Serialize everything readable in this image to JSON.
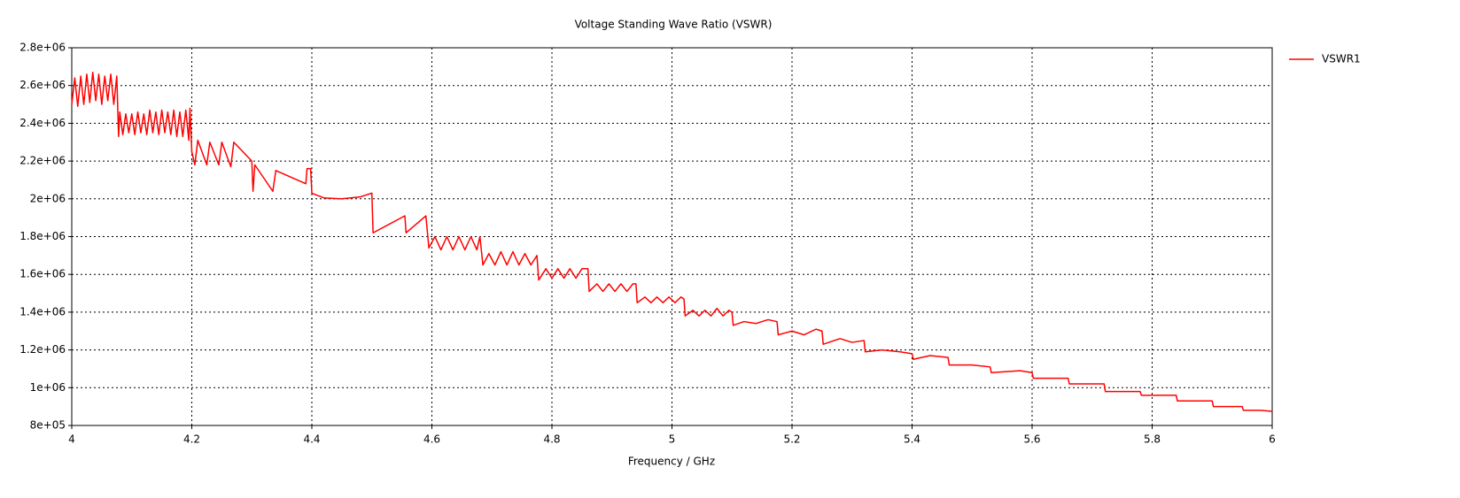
{
  "chart_data": {
    "type": "line",
    "title": "Voltage Standing Wave Ratio (VSWR)",
    "x_label": "Frequency / GHz",
    "x": [
      4,
      4.005,
      4.01,
      4.015,
      4.02,
      4.025,
      4.03,
      4.035,
      4.04,
      4.045,
      4.05,
      4.055,
      4.06,
      4.065,
      4.07,
      4.075,
      4.078,
      4.08,
      4.085,
      4.09,
      4.095,
      4.1,
      4.105,
      4.11,
      4.115,
      4.12,
      4.125,
      4.13,
      4.135,
      4.14,
      4.145,
      4.15,
      4.155,
      4.16,
      4.165,
      4.17,
      4.175,
      4.18,
      4.185,
      4.19,
      4.195,
      4.197,
      4.2,
      4.205,
      4.21,
      4.225,
      4.23,
      4.245,
      4.25,
      4.265,
      4.27,
      4.3,
      4.302,
      4.305,
      4.335,
      4.34,
      4.39,
      4.392,
      4.398,
      4.4,
      4.42,
      4.45,
      4.48,
      4.5,
      4.502,
      4.555,
      4.557,
      4.59,
      4.595,
      4.605,
      4.615,
      4.625,
      4.635,
      4.645,
      4.655,
      4.665,
      4.675,
      4.68,
      4.685,
      4.695,
      4.705,
      4.715,
      4.725,
      4.735,
      4.745,
      4.755,
      4.765,
      4.775,
      4.778,
      4.79,
      4.8,
      4.81,
      4.82,
      4.83,
      4.84,
      4.85,
      4.86,
      4.862,
      4.875,
      4.885,
      4.895,
      4.905,
      4.915,
      4.925,
      4.935,
      4.94,
      4.942,
      4.955,
      4.965,
      4.975,
      4.985,
      4.995,
      5.005,
      5.015,
      5.02,
      5.022,
      5.035,
      5.045,
      5.055,
      5.065,
      5.075,
      5.085,
      5.095,
      5.1,
      5.102,
      5.12,
      5.14,
      5.16,
      5.175,
      5.177,
      5.2,
      5.22,
      5.24,
      5.25,
      5.252,
      5.28,
      5.3,
      5.32,
      5.322,
      5.35,
      5.38,
      5.4,
      5.402,
      5.43,
      5.46,
      5.462,
      5.5,
      5.53,
      5.532,
      5.58,
      5.6,
      5.602,
      5.64,
      5.66,
      5.662,
      5.7,
      5.72,
      5.722,
      5.76,
      5.78,
      5.782,
      5.82,
      5.84,
      5.842,
      5.88,
      5.9,
      5.902,
      5.94,
      5.95,
      5.952,
      5.98,
      6
    ],
    "series": [
      {
        "name": "VSWR1",
        "color": "#ff0000",
        "values": [
          2500000.0,
          2640000.0,
          2490000.0,
          2650000.0,
          2500000.0,
          2660000.0,
          2510000.0,
          2670000.0,
          2520000.0,
          2660000.0,
          2500000.0,
          2650000.0,
          2520000.0,
          2660000.0,
          2500000.0,
          2650000.0,
          2330000.0,
          2460000.0,
          2340000.0,
          2450000.0,
          2350000.0,
          2450000.0,
          2340000.0,
          2460000.0,
          2350000.0,
          2450000.0,
          2340000.0,
          2470000.0,
          2350000.0,
          2460000.0,
          2340000.0,
          2470000.0,
          2350000.0,
          2460000.0,
          2340000.0,
          2470000.0,
          2330000.0,
          2460000.0,
          2330000.0,
          2470000.0,
          2310000.0,
          2480000.0,
          2250000.0,
          2180000.0,
          2310000.0,
          2180000.0,
          2300000.0,
          2180000.0,
          2300000.0,
          2170000.0,
          2300000.0,
          2200000.0,
          2040000.0,
          2180000.0,
          2040000.0,
          2150000.0,
          2080000.0,
          2160000.0,
          2160000.0,
          2030000.0,
          2005000.0,
          2000000.0,
          2010000.0,
          2030000.0,
          1820000.0,
          1910000.0,
          1820000.0,
          1910000.0,
          1740000.0,
          1800000.0,
          1730000.0,
          1800000.0,
          1730000.0,
          1800000.0,
          1730000.0,
          1800000.0,
          1730000.0,
          1800000.0,
          1650000.0,
          1710000.0,
          1650000.0,
          1720000.0,
          1650000.0,
          1720000.0,
          1650000.0,
          1710000.0,
          1650000.0,
          1700000.0,
          1570000.0,
          1630000.0,
          1580000.0,
          1630000.0,
          1580000.0,
          1630000.0,
          1580000.0,
          1630000.0,
          1630000.0,
          1510000.0,
          1550000.0,
          1510000.0,
          1550000.0,
          1510000.0,
          1550000.0,
          1510000.0,
          1550000.0,
          1550000.0,
          1450000.0,
          1480000.0,
          1450000.0,
          1480000.0,
          1450000.0,
          1480000.0,
          1450000.0,
          1480000.0,
          1470000.0,
          1380000.0,
          1410000.0,
          1380000.0,
          1410000.0,
          1380000.0,
          1420000.0,
          1380000.0,
          1410000.0,
          1400000.0,
          1330000.0,
          1350000.0,
          1340000.0,
          1360000.0,
          1350000.0,
          1280000.0,
          1300000.0,
          1280000.0,
          1310000.0,
          1300000.0,
          1230000.0,
          1260000.0,
          1240000.0,
          1250000.0,
          1190000.0,
          1200000.0,
          1190000.0,
          1180000.0,
          1150000.0,
          1170000.0,
          1160000.0,
          1120000.0,
          1120000.0,
          1110000.0,
          1080000.0,
          1090000.0,
          1080000.0,
          1050000.0,
          1050000.0,
          1050000.0,
          1020000.0,
          1020000.0,
          1020000.0,
          980000.0,
          980000.0,
          980000.0,
          960000.0,
          960000.0,
          960000.0,
          930000.0,
          930000.0,
          930000.0,
          900000.0,
          900000.0,
          900000.0,
          880000.0,
          880000.0,
          875000.0
        ]
      }
    ],
    "xlim": [
      4,
      6
    ],
    "xticks": [
      4,
      4.2,
      4.4,
      4.6,
      4.8,
      5,
      5.2,
      5.4,
      5.6,
      5.8,
      6
    ],
    "ylim": [
      800000,
      2800000
    ],
    "yticks": [
      {
        "value": 800000,
        "label": "8e+05"
      },
      {
        "value": 1000000,
        "label": "1e+06"
      },
      {
        "value": 1200000,
        "label": "1.2e+06"
      },
      {
        "value": 1400000,
        "label": "1.4e+06"
      },
      {
        "value": 1600000,
        "label": "1.6e+06"
      },
      {
        "value": 1800000,
        "label": "1.8e+06"
      },
      {
        "value": 2000000,
        "label": "2e+06"
      },
      {
        "value": 2200000,
        "label": "2.2e+06"
      },
      {
        "value": 2400000,
        "label": "2.4e+06"
      },
      {
        "value": 2600000,
        "label": "2.6e+06"
      },
      {
        "value": 2800000,
        "label": "2.8e+06"
      }
    ],
    "grid": true,
    "legend": "top-right"
  }
}
